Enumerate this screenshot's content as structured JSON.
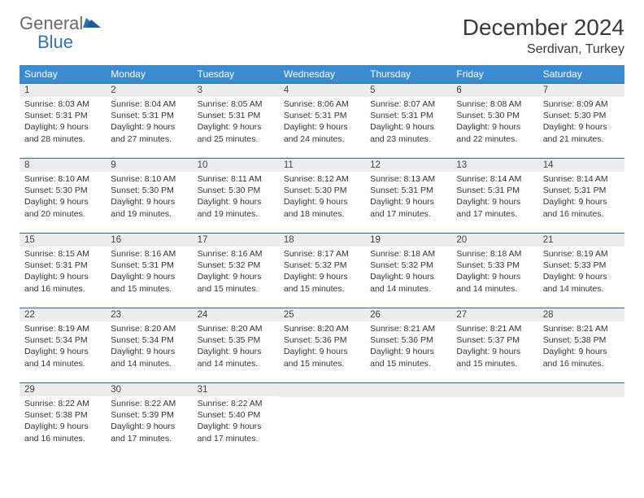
{
  "brand": {
    "part1": "General",
    "part2": "Blue"
  },
  "title": "December 2024",
  "location": "Serdivan, Turkey",
  "colors": {
    "header_bg": "#3b8bd0",
    "rule": "#2a6aa8",
    "daynum_bg": "#ededed",
    "text": "#333333",
    "logo_gray": "#6a6a6a",
    "logo_blue": "#2a74bc"
  },
  "daynames": [
    "Sunday",
    "Monday",
    "Tuesday",
    "Wednesday",
    "Thursday",
    "Friday",
    "Saturday"
  ],
  "weeks": [
    [
      {
        "n": "1",
        "sr": "8:03 AM",
        "ss": "5:31 PM",
        "dl": "9 hours and 28 minutes."
      },
      {
        "n": "2",
        "sr": "8:04 AM",
        "ss": "5:31 PM",
        "dl": "9 hours and 27 minutes."
      },
      {
        "n": "3",
        "sr": "8:05 AM",
        "ss": "5:31 PM",
        "dl": "9 hours and 25 minutes."
      },
      {
        "n": "4",
        "sr": "8:06 AM",
        "ss": "5:31 PM",
        "dl": "9 hours and 24 minutes."
      },
      {
        "n": "5",
        "sr": "8:07 AM",
        "ss": "5:31 PM",
        "dl": "9 hours and 23 minutes."
      },
      {
        "n": "6",
        "sr": "8:08 AM",
        "ss": "5:30 PM",
        "dl": "9 hours and 22 minutes."
      },
      {
        "n": "7",
        "sr": "8:09 AM",
        "ss": "5:30 PM",
        "dl": "9 hours and 21 minutes."
      }
    ],
    [
      {
        "n": "8",
        "sr": "8:10 AM",
        "ss": "5:30 PM",
        "dl": "9 hours and 20 minutes."
      },
      {
        "n": "9",
        "sr": "8:10 AM",
        "ss": "5:30 PM",
        "dl": "9 hours and 19 minutes."
      },
      {
        "n": "10",
        "sr": "8:11 AM",
        "ss": "5:30 PM",
        "dl": "9 hours and 19 minutes."
      },
      {
        "n": "11",
        "sr": "8:12 AM",
        "ss": "5:30 PM",
        "dl": "9 hours and 18 minutes."
      },
      {
        "n": "12",
        "sr": "8:13 AM",
        "ss": "5:31 PM",
        "dl": "9 hours and 17 minutes."
      },
      {
        "n": "13",
        "sr": "8:14 AM",
        "ss": "5:31 PM",
        "dl": "9 hours and 17 minutes."
      },
      {
        "n": "14",
        "sr": "8:14 AM",
        "ss": "5:31 PM",
        "dl": "9 hours and 16 minutes."
      }
    ],
    [
      {
        "n": "15",
        "sr": "8:15 AM",
        "ss": "5:31 PM",
        "dl": "9 hours and 16 minutes."
      },
      {
        "n": "16",
        "sr": "8:16 AM",
        "ss": "5:31 PM",
        "dl": "9 hours and 15 minutes."
      },
      {
        "n": "17",
        "sr": "8:16 AM",
        "ss": "5:32 PM",
        "dl": "9 hours and 15 minutes."
      },
      {
        "n": "18",
        "sr": "8:17 AM",
        "ss": "5:32 PM",
        "dl": "9 hours and 15 minutes."
      },
      {
        "n": "19",
        "sr": "8:18 AM",
        "ss": "5:32 PM",
        "dl": "9 hours and 14 minutes."
      },
      {
        "n": "20",
        "sr": "8:18 AM",
        "ss": "5:33 PM",
        "dl": "9 hours and 14 minutes."
      },
      {
        "n": "21",
        "sr": "8:19 AM",
        "ss": "5:33 PM",
        "dl": "9 hours and 14 minutes."
      }
    ],
    [
      {
        "n": "22",
        "sr": "8:19 AM",
        "ss": "5:34 PM",
        "dl": "9 hours and 14 minutes."
      },
      {
        "n": "23",
        "sr": "8:20 AM",
        "ss": "5:34 PM",
        "dl": "9 hours and 14 minutes."
      },
      {
        "n": "24",
        "sr": "8:20 AM",
        "ss": "5:35 PM",
        "dl": "9 hours and 14 minutes."
      },
      {
        "n": "25",
        "sr": "8:20 AM",
        "ss": "5:36 PM",
        "dl": "9 hours and 15 minutes."
      },
      {
        "n": "26",
        "sr": "8:21 AM",
        "ss": "5:36 PM",
        "dl": "9 hours and 15 minutes."
      },
      {
        "n": "27",
        "sr": "8:21 AM",
        "ss": "5:37 PM",
        "dl": "9 hours and 15 minutes."
      },
      {
        "n": "28",
        "sr": "8:21 AM",
        "ss": "5:38 PM",
        "dl": "9 hours and 16 minutes."
      }
    ],
    [
      {
        "n": "29",
        "sr": "8:22 AM",
        "ss": "5:38 PM",
        "dl": "9 hours and 16 minutes."
      },
      {
        "n": "30",
        "sr": "8:22 AM",
        "ss": "5:39 PM",
        "dl": "9 hours and 17 minutes."
      },
      {
        "n": "31",
        "sr": "8:22 AM",
        "ss": "5:40 PM",
        "dl": "9 hours and 17 minutes."
      },
      null,
      null,
      null,
      null
    ]
  ],
  "labels": {
    "sunrise": "Sunrise:",
    "sunset": "Sunset:",
    "daylight": "Daylight:"
  }
}
